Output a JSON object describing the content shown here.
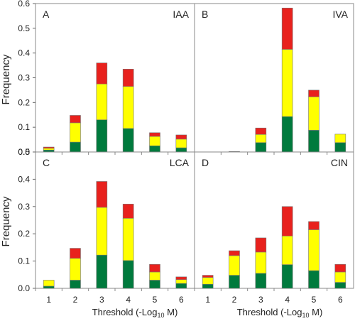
{
  "chart_data": [
    {
      "panel": "A",
      "compound": "IAA",
      "type": "bar",
      "stacked": true,
      "categories": [
        "1",
        "2",
        "3",
        "4",
        "5",
        "6"
      ],
      "series": [
        {
          "color": "#007a3d",
          "values": [
            0.008,
            0.04,
            0.13,
            0.095,
            0.025,
            0.017
          ]
        },
        {
          "color": "#ffff00",
          "values": [
            0.007,
            0.078,
            0.145,
            0.17,
            0.038,
            0.035
          ]
        },
        {
          "color": "#e8211d",
          "values": [
            0.005,
            0.03,
            0.085,
            0.07,
            0.015,
            0.017
          ]
        }
      ]
    },
    {
      "panel": "B",
      "compound": "IVA",
      "type": "bar",
      "stacked": true,
      "categories": [
        "1",
        "2",
        "3",
        "4",
        "5",
        "6"
      ],
      "series": [
        {
          "color": "#007a3d",
          "values": [
            0,
            0.0,
            0.038,
            0.143,
            0.088,
            0.038
          ]
        },
        {
          "color": "#ffff00",
          "values": [
            0,
            0.002,
            0.033,
            0.272,
            0.135,
            0.034
          ]
        },
        {
          "color": "#e8211d",
          "values": [
            0,
            0.0,
            0.026,
            0.167,
            0.027,
            0.0
          ]
        }
      ]
    },
    {
      "panel": "C",
      "compound": "LCA",
      "type": "bar",
      "stacked": true,
      "categories": [
        "1",
        "2",
        "3",
        "4",
        "5",
        "6"
      ],
      "series": [
        {
          "color": "#007a3d",
          "values": [
            0.008,
            0.03,
            0.122,
            0.102,
            0.03,
            0.018
          ]
        },
        {
          "color": "#ffff00",
          "values": [
            0.022,
            0.08,
            0.175,
            0.155,
            0.03,
            0.014
          ]
        },
        {
          "color": "#e8211d",
          "values": [
            0.0,
            0.037,
            0.095,
            0.052,
            0.028,
            0.01
          ]
        }
      ]
    },
    {
      "panel": "D",
      "compound": "CIN",
      "type": "bar",
      "stacked": true,
      "categories": [
        "1",
        "2",
        "3",
        "4",
        "5",
        "6"
      ],
      "series": [
        {
          "color": "#007a3d",
          "values": [
            0.015,
            0.048,
            0.055,
            0.087,
            0.065,
            0.022
          ]
        },
        {
          "color": "#ffff00",
          "values": [
            0.025,
            0.072,
            0.078,
            0.105,
            0.15,
            0.038
          ]
        },
        {
          "color": "#e8211d",
          "values": [
            0.008,
            0.018,
            0.052,
            0.108,
            0.03,
            0.028
          ]
        }
      ]
    }
  ],
  "axes": {
    "ylabel": "Frequency",
    "xlabel_main": "Threshold (-Log",
    "xlabel_sub": "10",
    "xlabel_end": " M)",
    "y_ticks_top": [
      "0.0",
      "0.1",
      "0.2",
      "0.3",
      "0.4",
      "0.5",
      "0.6"
    ],
    "y_ticks_bottom": [
      "0.0",
      "0.1",
      "0.2",
      "0.3",
      "0.4",
      "0.5"
    ],
    "ylim_top": [
      0,
      0.6
    ],
    "ylim_bottom": [
      0,
      0.5
    ]
  }
}
